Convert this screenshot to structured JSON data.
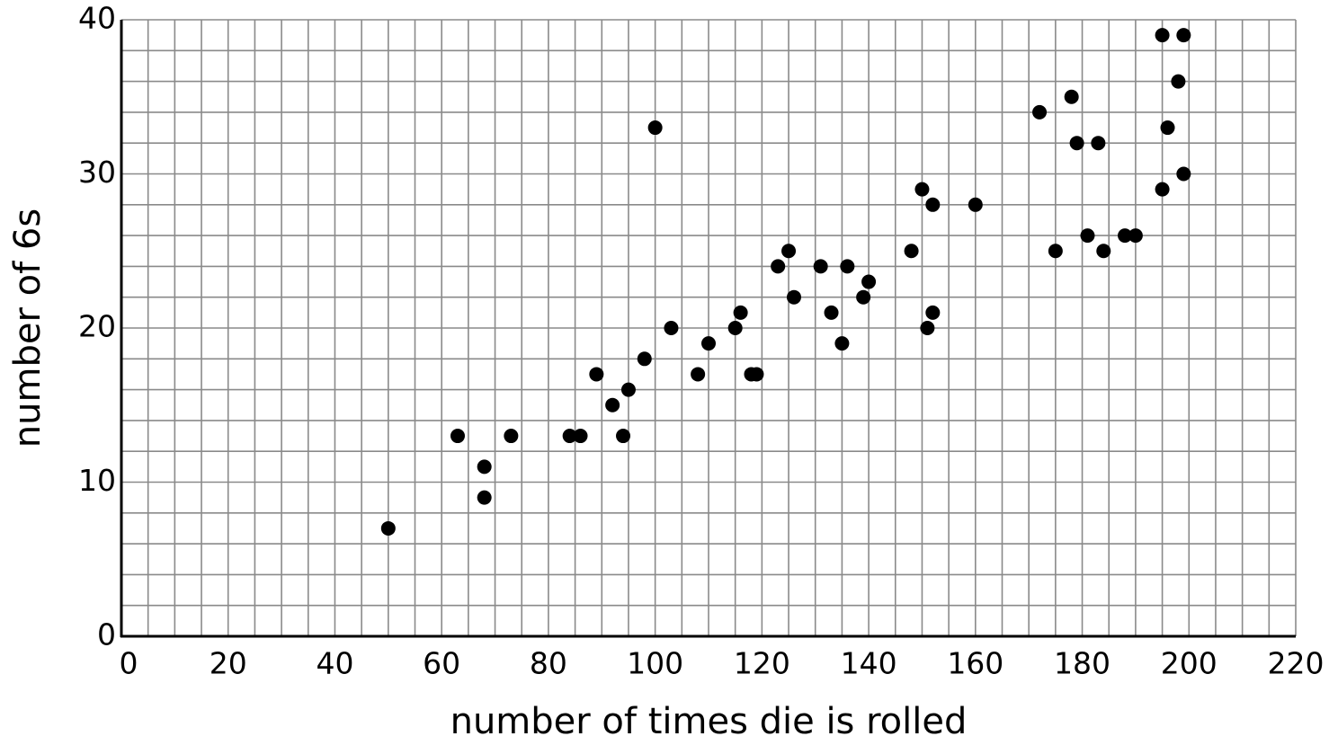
{
  "chart_data": {
    "type": "scatter",
    "x_label": "number of times die is rolled",
    "y_label": "number of 6s",
    "xlim": [
      0,
      220
    ],
    "ylim": [
      0,
      40
    ],
    "xticks": [
      0,
      20,
      40,
      60,
      80,
      100,
      120,
      140,
      160,
      180,
      200,
      220
    ],
    "yticks": [
      0,
      10,
      20,
      30,
      40
    ],
    "grid": true,
    "color": "#000000",
    "x": [
      50,
      63,
      68,
      68,
      73,
      84,
      86,
      89,
      92,
      94,
      95,
      98,
      100,
      103,
      108,
      110,
      115,
      116,
      118,
      119,
      123,
      125,
      126,
      131,
      133,
      135,
      136,
      139,
      140,
      148,
      150,
      151,
      152,
      152,
      160,
      172,
      175,
      178,
      179,
      181,
      183,
      184,
      188,
      190,
      195,
      195,
      196,
      198,
      199,
      199
    ],
    "values": [
      7,
      13,
      11,
      9,
      13,
      13,
      13,
      17,
      15,
      13,
      16,
      18,
      33,
      20,
      17,
      19,
      20,
      21,
      17,
      17,
      24,
      25,
      22,
      24,
      21,
      19,
      24,
      22,
      23,
      25,
      29,
      20,
      28,
      21,
      28,
      34,
      25,
      35,
      32,
      26,
      32,
      25,
      26,
      26,
      39,
      29,
      33,
      36,
      39,
      30
    ]
  }
}
